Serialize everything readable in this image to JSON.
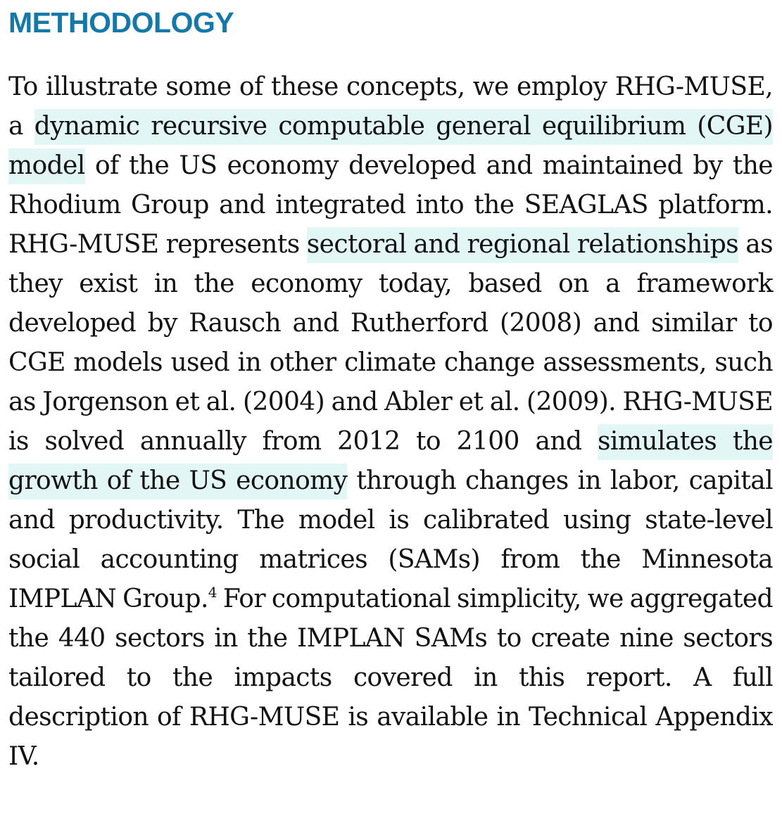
{
  "section": {
    "heading": "METHODOLOGY"
  },
  "paragraph": {
    "seg_01": "To illustrate some of these concepts, we employ RHG-MUSE, a ",
    "hl_01": "dynamic recursive computable general equilibrium (CGE) model",
    "seg_02": " of the US economy developed and maintained by the Rhodium Group and integrated into the SEAGLAS platform. RHG-MUSE represents ",
    "hl_02": "sectoral and regional relationships",
    "seg_03": " as they exist in the economy today, based on a framework developed by Rausch and Rutherford (2008) and similar to CGE models used in other climate change assessments, such as Jorgenson et al. (2004) and Abler et al. (2009). RHG-MUSE is solved annually from 2012 to 2100 and ",
    "hl_03": "simulates the growth of the US economy",
    "seg_04": " through changes in labor, capital and productivity. The model is calibrated using state-level social accounting matrices (SAMs) from the Minnesota IMPLAN Group.",
    "footnote_ref": "4",
    "seg_05": " For computational simplicity, we aggregated the 440 sectors in the IMPLAN SAMs to create nine sectors tailored to the impacts covered in this report. A full description of RHG-MUSE is available in Technical Appendix IV."
  },
  "colors": {
    "heading": "#1479a8",
    "highlight": "#e2f6f6",
    "text": "#111111"
  }
}
